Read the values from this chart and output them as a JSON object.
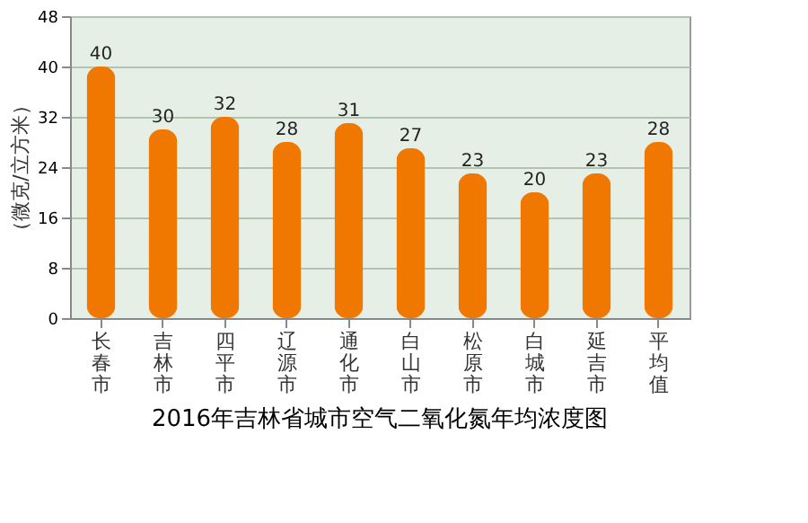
{
  "chart_data": {
    "type": "bar",
    "title": "2016年吉林省城市空气二氧化氮年均浓度图",
    "ylabel": "（微克/立方米）",
    "categories": [
      "长春市",
      "吉林市",
      "四平市",
      "辽源市",
      "通化市",
      "白山市",
      "松原市",
      "白城市",
      "延吉市",
      "平均值"
    ],
    "values": [
      40,
      30,
      32,
      28,
      31,
      27,
      23,
      20,
      23,
      28
    ],
    "color": "#f07800",
    "ylim": [
      0,
      48
    ],
    "yticks": [
      0,
      8,
      16,
      24,
      32,
      40,
      48
    ],
    "grid": "y",
    "data_labels": true
  }
}
